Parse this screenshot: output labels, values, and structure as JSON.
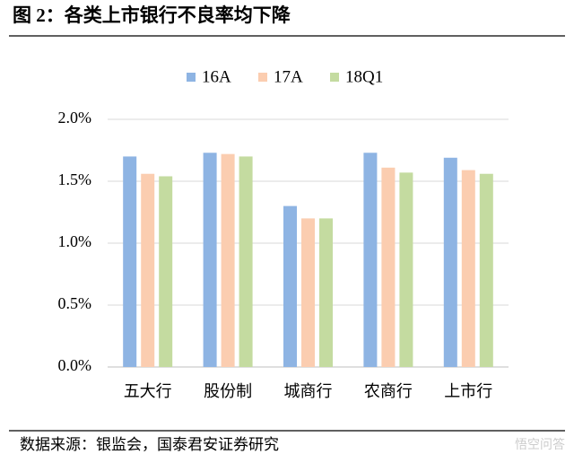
{
  "chart_data": {
    "type": "bar",
    "title": "图 2：各类上市银行不良率均下降",
    "source": "数据来源：银监会，国泰君安证券研究",
    "watermark": "悟空问答",
    "categories": [
      "五大行",
      "股份制",
      "城商行",
      "农商行",
      "上市行"
    ],
    "series": [
      {
        "name": "16A",
        "color": "#8eb4e3",
        "values": [
          1.7,
          1.73,
          1.3,
          1.73,
          1.69
        ]
      },
      {
        "name": "17A",
        "color": "#fbcdb0",
        "values": [
          1.56,
          1.72,
          1.2,
          1.61,
          1.59
        ]
      },
      {
        "name": "18Q1",
        "color": "#c4dba0",
        "values": [
          1.54,
          1.7,
          1.2,
          1.57,
          1.56
        ]
      }
    ],
    "ylim": [
      0,
      2.0
    ],
    "yticks": [
      {
        "value": 0,
        "label": "0.0%"
      },
      {
        "value": 0.5,
        "label": "0.5%"
      },
      {
        "value": 1.0,
        "label": "1.0%"
      },
      {
        "value": 1.5,
        "label": "1.5%"
      },
      {
        "value": 2.0,
        "label": "2.0%"
      }
    ],
    "grid": true,
    "legend": "top"
  }
}
